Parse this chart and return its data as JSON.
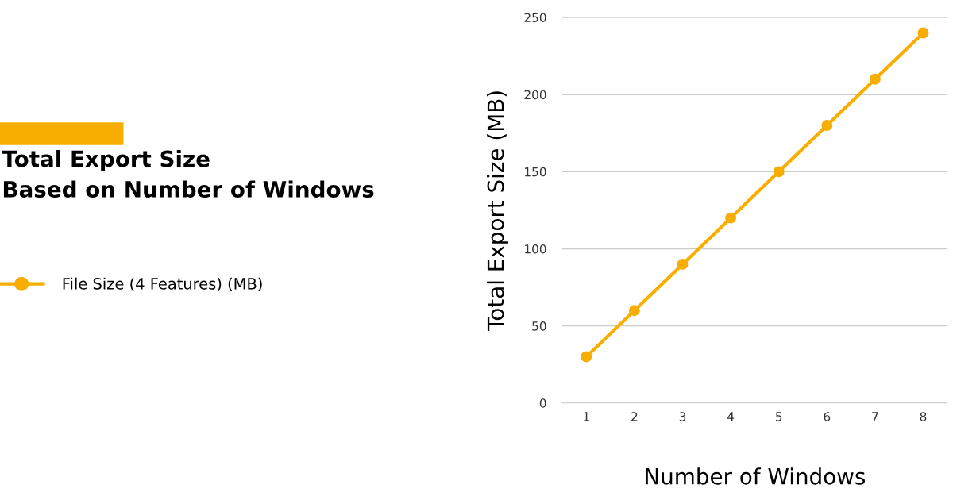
{
  "chart_data": {
    "type": "line",
    "title": "Total Export Size\nBased on Number of Windows",
    "xlabel": "Number of Windows",
    "ylabel": "Total Export Size (MB)",
    "categories": [
      "1",
      "2",
      "3",
      "4",
      "5",
      "6",
      "7",
      "8"
    ],
    "series": [
      {
        "name": "File Size (4 Features) (MB)",
        "color": "#f7ae00",
        "values": [
          30,
          60,
          90,
          120,
          150,
          180,
          210,
          240
        ]
      }
    ],
    "ylim": [
      0,
      250
    ],
    "yticks": [
      0,
      50,
      100,
      150,
      200,
      250
    ],
    "grid": "y",
    "legend": "left",
    "marker": "circle",
    "line_style": "solid"
  }
}
